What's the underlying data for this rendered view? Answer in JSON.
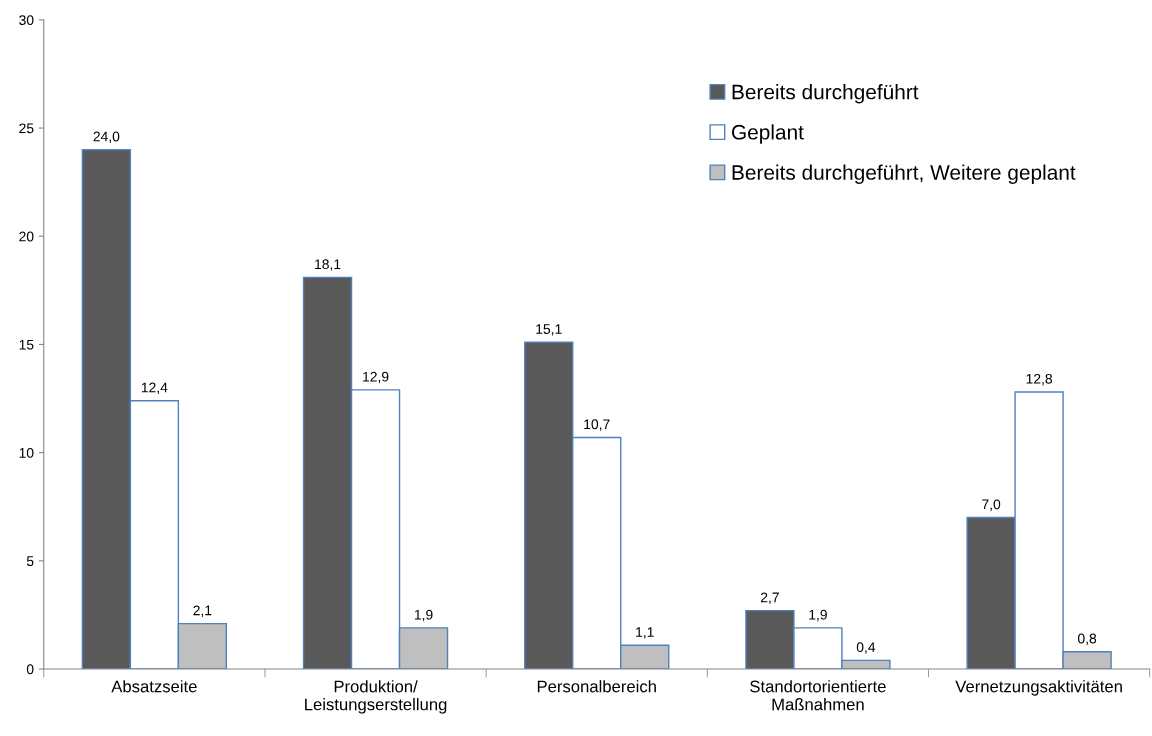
{
  "chart_data": {
    "type": "bar",
    "categories": [
      "Absatzseite",
      "Produktion/\nLeistungserstellung",
      "Personalbereich",
      "Standortorientierte\nMaßnahmen",
      "Vernetzungsaktivitäten"
    ],
    "series": [
      {
        "name": "Bereits durchgeführt",
        "color": "#595959",
        "values": [
          24.0,
          18.1,
          15.1,
          2.7,
          7.0
        ],
        "value_labels": [
          "24,0",
          "18,1",
          "15,1",
          "2,7",
          "7,0"
        ]
      },
      {
        "name": "Geplant",
        "color": "#ffffff",
        "values": [
          12.4,
          12.9,
          10.7,
          1.9,
          12.8
        ],
        "value_labels": [
          "12,4",
          "12,9",
          "10,7",
          "1,9",
          "12,8"
        ]
      },
      {
        "name": "Bereits durchgeführt, Weitere geplant",
        "color": "#bfbfbf",
        "values": [
          2.1,
          1.9,
          1.1,
          0.4,
          0.8
        ],
        "value_labels": [
          "2,1",
          "1,9",
          "1,1",
          "0,4",
          "0,8"
        ]
      }
    ],
    "ylim": [
      0,
      30
    ],
    "yticks": [
      0,
      5,
      10,
      15,
      20,
      25,
      30
    ],
    "grid": false,
    "legend": "top right"
  }
}
